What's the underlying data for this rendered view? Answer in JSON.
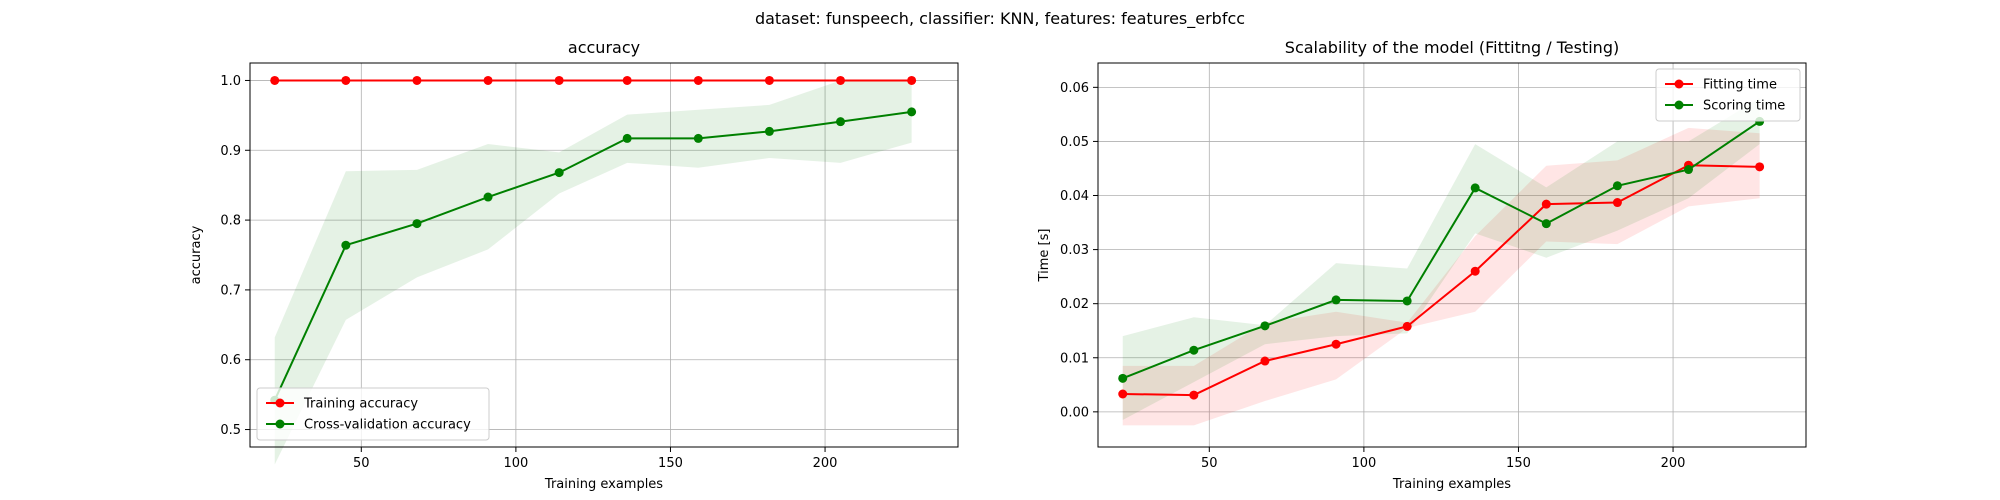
{
  "figure": {
    "suptitle": "dataset: funspeech, classifier: KNN, features: features_erbfcc"
  },
  "chart_data": [
    {
      "type": "line",
      "title": "accuracy",
      "xlabel": "Training examples",
      "ylabel": "accuracy",
      "xlim": [
        14,
        243
      ],
      "ylim": [
        0.475,
        1.025
      ],
      "xticks": [
        50,
        100,
        150,
        200
      ],
      "yticks": [
        0.5,
        0.6,
        0.7,
        0.8,
        0.9,
        1.0
      ],
      "grid": true,
      "legend_position": "lower left",
      "x": [
        22,
        45,
        68,
        91,
        114,
        136,
        159,
        182,
        205,
        228
      ],
      "series": [
        {
          "name": "Training accuracy",
          "color": "#ff0000",
          "values": [
            1.0,
            1.0,
            1.0,
            1.0,
            1.0,
            1.0,
            1.0,
            1.0,
            1.0,
            1.0
          ],
          "band_low": [
            1.0,
            1.0,
            1.0,
            1.0,
            1.0,
            1.0,
            1.0,
            1.0,
            1.0,
            1.0
          ],
          "band_high": [
            1.0,
            1.0,
            1.0,
            1.0,
            1.0,
            1.0,
            1.0,
            1.0,
            1.0,
            1.0
          ]
        },
        {
          "name": "Cross-validation accuracy",
          "color": "#008000",
          "values": [
            0.542,
            0.764,
            0.795,
            0.833,
            0.868,
            0.917,
            0.917,
            0.927,
            0.941,
            0.955
          ],
          "band_low": [
            0.45,
            0.657,
            0.718,
            0.758,
            0.838,
            0.882,
            0.875,
            0.889,
            0.882,
            0.911
          ],
          "band_high": [
            0.632,
            0.87,
            0.872,
            0.909,
            0.897,
            0.951,
            0.958,
            0.965,
            1.0,
            1.0
          ]
        }
      ]
    },
    {
      "type": "line",
      "title": "Scalability of the model (Fittitng / Testing)",
      "xlabel": "Training examples",
      "ylabel": "Time [s]",
      "xlim": [
        14,
        243
      ],
      "ylim": [
        -0.0065,
        0.0645
      ],
      "xticks": [
        50,
        100,
        150,
        200
      ],
      "yticks": [
        0.0,
        0.01,
        0.02,
        0.03,
        0.04,
        0.05,
        0.06
      ],
      "ytick_labels": [
        "0.00",
        "0.01",
        "0.02",
        "0.03",
        "0.04",
        "0.05",
        "0.06"
      ],
      "grid": true,
      "legend_position": "upper right",
      "x": [
        22,
        45,
        68,
        91,
        114,
        136,
        159,
        182,
        205,
        228
      ],
      "series": [
        {
          "name": "Fitting time",
          "color": "#ff0000",
          "values": [
            0.0033,
            0.0031,
            0.0094,
            0.0125,
            0.0158,
            0.026,
            0.0384,
            0.0387,
            0.0456,
            0.0453
          ],
          "band_low": [
            -0.0025,
            -0.0025,
            0.002,
            0.006,
            0.0155,
            0.0185,
            0.0315,
            0.031,
            0.038,
            0.0395
          ],
          "band_high": [
            0.0085,
            0.0085,
            0.0165,
            0.0185,
            0.0165,
            0.0325,
            0.0455,
            0.0465,
            0.0525,
            0.0515
          ]
        },
        {
          "name": "Scoring time",
          "color": "#008000",
          "values": [
            0.0062,
            0.0114,
            0.0159,
            0.0207,
            0.0205,
            0.0414,
            0.0348,
            0.0418,
            0.0448,
            0.0537
          ],
          "band_low": [
            -0.0015,
            0.0055,
            0.0125,
            0.014,
            0.0145,
            0.033,
            0.0285,
            0.0335,
            0.0395,
            0.0495
          ],
          "band_high": [
            0.014,
            0.0175,
            0.016,
            0.0275,
            0.0265,
            0.0495,
            0.0415,
            0.05,
            0.05,
            0.058
          ]
        }
      ]
    }
  ]
}
